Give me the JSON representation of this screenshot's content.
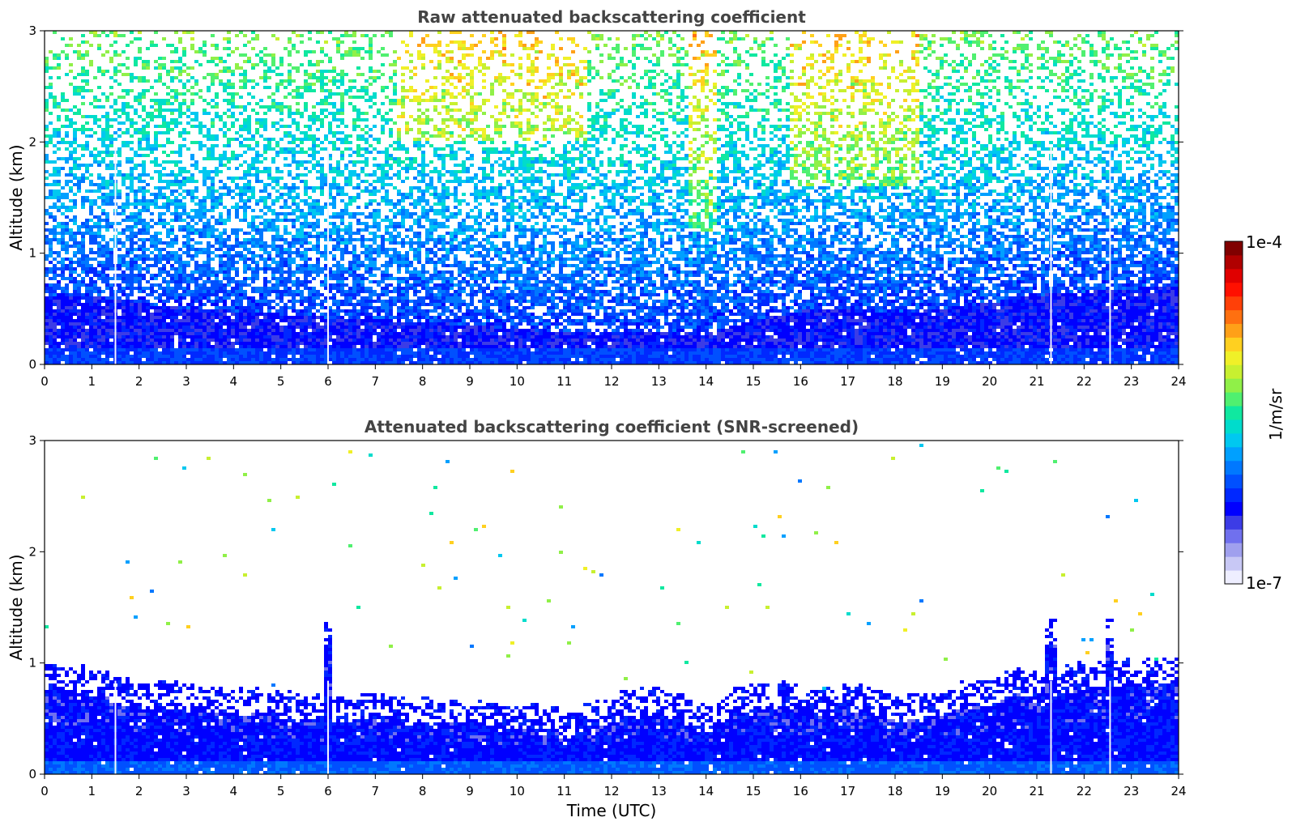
{
  "chart_data": [
    {
      "type": "heatmap",
      "title": "Raw attenuated backscattering coefficient",
      "xlabel": "",
      "ylabel": "Altitude (km)",
      "xlim": [
        0,
        24
      ],
      "ylim": [
        0,
        3
      ],
      "xticks": [
        "0",
        "1",
        "2",
        "3",
        "4",
        "5",
        "6",
        "7",
        "8",
        "9",
        "10",
        "11",
        "12",
        "13",
        "14",
        "15",
        "16",
        "17",
        "18",
        "19",
        "20",
        "21",
        "22",
        "23",
        "24"
      ],
      "yticks": [
        "0",
        "1",
        "2",
        "3"
      ],
      "dense_layer_top_km": [
        [
          0,
          0.6
        ],
        [
          1,
          0.62
        ],
        [
          2,
          0.55
        ],
        [
          3,
          0.5
        ],
        [
          4,
          0.48
        ],
        [
          5,
          0.45
        ],
        [
          6,
          0.42
        ],
        [
          7,
          0.4
        ],
        [
          8,
          0.38
        ],
        [
          9,
          0.35
        ],
        [
          10,
          0.32
        ],
        [
          11,
          0.28
        ],
        [
          12,
          0.28
        ],
        [
          13,
          0.3
        ],
        [
          14,
          0.27
        ],
        [
          15,
          0.4
        ],
        [
          16,
          0.48
        ],
        [
          17,
          0.5
        ],
        [
          18,
          0.45
        ],
        [
          19,
          0.5
        ],
        [
          20,
          0.55
        ],
        [
          21,
          0.62
        ],
        [
          22,
          0.65
        ],
        [
          23,
          0.68
        ],
        [
          24,
          0.7
        ]
      ],
      "aerosol_enhancement": [
        {
          "hours": [
            7.5,
            11.5
          ],
          "alt_km": [
            2.0,
            3.0
          ],
          "level": "yellow-green"
        },
        {
          "hours": [
            13.6,
            14.2
          ],
          "alt_km": [
            1.2,
            3.0
          ],
          "level": "yellow-green"
        },
        {
          "hours": [
            15.8,
            18.5
          ],
          "alt_km": [
            1.6,
            3.0
          ],
          "level": "yellow-green"
        }
      ],
      "vertical_streaks_hours": [
        1.5,
        6.0,
        21.3,
        22.55
      ],
      "noise_all_altitudes": true
    },
    {
      "type": "heatmap",
      "title": "Attenuated backscattering coefficient (SNR-screened)",
      "xlabel": "Time (UTC)",
      "ylabel": "Altitude (km)",
      "xlim": [
        0,
        24
      ],
      "ylim": [
        0,
        3
      ],
      "xticks": [
        "0",
        "1",
        "2",
        "3",
        "4",
        "5",
        "6",
        "7",
        "8",
        "9",
        "10",
        "11",
        "12",
        "13",
        "14",
        "15",
        "16",
        "17",
        "18",
        "19",
        "20",
        "21",
        "22",
        "23",
        "24"
      ],
      "yticks": [
        "0",
        "1",
        "2",
        "3"
      ],
      "boundary_layer_top_km": [
        [
          0,
          0.85
        ],
        [
          0.5,
          0.82
        ],
        [
          1,
          0.8
        ],
        [
          1.5,
          0.72
        ],
        [
          2,
          0.7
        ],
        [
          2.5,
          0.68
        ],
        [
          3,
          0.66
        ],
        [
          3.5,
          0.64
        ],
        [
          4,
          0.63
        ],
        [
          4.5,
          0.62
        ],
        [
          5,
          0.6
        ],
        [
          5.5,
          0.58
        ],
        [
          6,
          0.56
        ],
        [
          6.5,
          0.55
        ],
        [
          7,
          0.58
        ],
        [
          7.5,
          0.55
        ],
        [
          8,
          0.53
        ],
        [
          8.5,
          0.52
        ],
        [
          9,
          0.5
        ],
        [
          9.5,
          0.5
        ],
        [
          10,
          0.48
        ],
        [
          10.5,
          0.45
        ],
        [
          11,
          0.42
        ],
        [
          11.5,
          0.48
        ],
        [
          12,
          0.55
        ],
        [
          12.5,
          0.6
        ],
        [
          13,
          0.6
        ],
        [
          13.5,
          0.55
        ],
        [
          14,
          0.45
        ],
        [
          14.5,
          0.6
        ],
        [
          15,
          0.65
        ],
        [
          15.5,
          0.68
        ],
        [
          16,
          0.65
        ],
        [
          16.5,
          0.62
        ],
        [
          17,
          0.66
        ],
        [
          17.5,
          0.62
        ],
        [
          18,
          0.55
        ],
        [
          18.5,
          0.58
        ],
        [
          19,
          0.62
        ],
        [
          19.5,
          0.68
        ],
        [
          20,
          0.72
        ],
        [
          20.5,
          0.78
        ],
        [
          21,
          0.8
        ],
        [
          21.5,
          0.82
        ],
        [
          22,
          0.84
        ],
        [
          22.5,
          0.86
        ],
        [
          23,
          0.88
        ],
        [
          23.5,
          0.88
        ],
        [
          24,
          0.9
        ]
      ],
      "plumes_hours": [
        6.0,
        21.3,
        22.55
      ],
      "vertical_streaks_hours": [
        1.5,
        6.0,
        21.3,
        22.55
      ]
    }
  ],
  "colorbar": {
    "label": "1/m/sr",
    "max_label": "1e-4",
    "min_label": "1e-7",
    "scale": "log",
    "colormap": [
      "#eeeeff",
      "#c8c8f5",
      "#a0a0ee",
      "#7070ee",
      "#3c3ce6",
      "#0000ff",
      "#0028ff",
      "#0050ff",
      "#0078ff",
      "#00a0ff",
      "#00c8f0",
      "#00dccc",
      "#10e8a0",
      "#50f070",
      "#90f048",
      "#c8f030",
      "#f0f028",
      "#ffd020",
      "#ffa018",
      "#ff7010",
      "#ff4008",
      "#ff1000",
      "#e00000",
      "#b00000",
      "#800000"
    ]
  }
}
